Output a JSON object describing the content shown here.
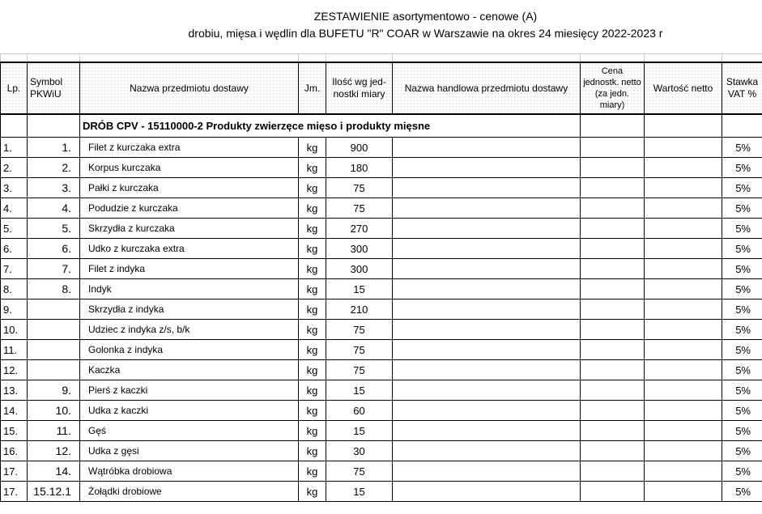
{
  "title": {
    "line1": "ZESTAWIENIE asortymentowo - cenowe (A)",
    "line2": "drobiu, mięsa i wędlin dla BUFETU \"R\"  COAR w Warszawie na okres 24 miesięcy 2022-2023 r"
  },
  "headers": {
    "lp": "Lp.",
    "symbol": "Symbol PKWiU",
    "name": "Nazwa przedmiotu dostawy",
    "unit": "Jm.",
    "qty": "Ilość  wg jed-nostki miary",
    "trade_name": "Nazwa handlowa przedmiotu dostawy",
    "price": "Cena jednostk. netto (za jedn. miary)",
    "value": "Wartość netto",
    "vat": "Stawka VAT %"
  },
  "section": "DRÓB  CPV - 15110000-2  Produkty zwierzęce mięso i produkty mięsne",
  "rows": [
    {
      "lp": "1.",
      "symbol": "1.",
      "name": "Filet z kurczaka extra",
      "unit": "kg",
      "qty": "900",
      "vat": "5%"
    },
    {
      "lp": "2.",
      "symbol": "2.",
      "name": "Korpus kurczaka",
      "unit": "kg",
      "qty": "180",
      "vat": "5%"
    },
    {
      "lp": "3.",
      "symbol": "3.",
      "name": "Pałki z kurczaka",
      "unit": "kg",
      "qty": "75",
      "vat": "5%"
    },
    {
      "lp": "4.",
      "symbol": "4.",
      "name": "Podudzie z kurczaka",
      "unit": "kg",
      "qty": "75",
      "vat": "5%"
    },
    {
      "lp": "5.",
      "symbol": "5.",
      "name": "Skrzydła z kurczaka",
      "unit": "kg",
      "qty": "270",
      "vat": "5%"
    },
    {
      "lp": "6.",
      "symbol": "6.",
      "name": "Udko z kurczaka extra",
      "unit": "kg",
      "qty": "300",
      "vat": "5%"
    },
    {
      "lp": "7.",
      "symbol": "7.",
      "name": "Filet z indyka",
      "unit": "kg",
      "qty": "300",
      "vat": "5%"
    },
    {
      "lp": "8.",
      "symbol": "8.",
      "name": "Indyk",
      "unit": "kg",
      "qty": "15",
      "vat": "5%"
    },
    {
      "lp": "9.",
      "symbol": "",
      "name": "Skrzydła z indyka",
      "unit": "kg",
      "qty": "210",
      "vat": "5%"
    },
    {
      "lp": "10.",
      "symbol": "",
      "name": "Udziec z indyka z/s, b/k",
      "unit": "kg",
      "qty": "75",
      "vat": "5%"
    },
    {
      "lp": "11.",
      "symbol": "",
      "name": "Golonka z indyka",
      "unit": "kg",
      "qty": "75",
      "vat": "5%"
    },
    {
      "lp": "12.",
      "symbol": "",
      "name": "Kaczka",
      "unit": "kg",
      "qty": "75",
      "vat": "5%"
    },
    {
      "lp": "13.",
      "symbol": "9.",
      "name": "Pierś z kaczki",
      "unit": "kg",
      "qty": "15",
      "vat": "5%"
    },
    {
      "lp": "14.",
      "symbol": "10.",
      "name": "Udka z kaczki",
      "unit": "kg",
      "qty": "60",
      "vat": "5%"
    },
    {
      "lp": "15.",
      "symbol": "11.",
      "name": "Gęś",
      "unit": "kg",
      "qty": "15",
      "vat": "5%"
    },
    {
      "lp": "16.",
      "symbol": "12.",
      "name": "Udka z gęsi",
      "unit": "kg",
      "qty": "30",
      "vat": "5%"
    },
    {
      "lp": "17.",
      "symbol": "14.",
      "name": "Wątróbka drobiowa",
      "unit": "kg",
      "qty": "75",
      "vat": "5%"
    },
    {
      "lp": "17.",
      "symbol": "15.12.1",
      "name": "Żołądki drobiowe",
      "unit": "kg",
      "qty": "15",
      "vat": "5%"
    }
  ]
}
